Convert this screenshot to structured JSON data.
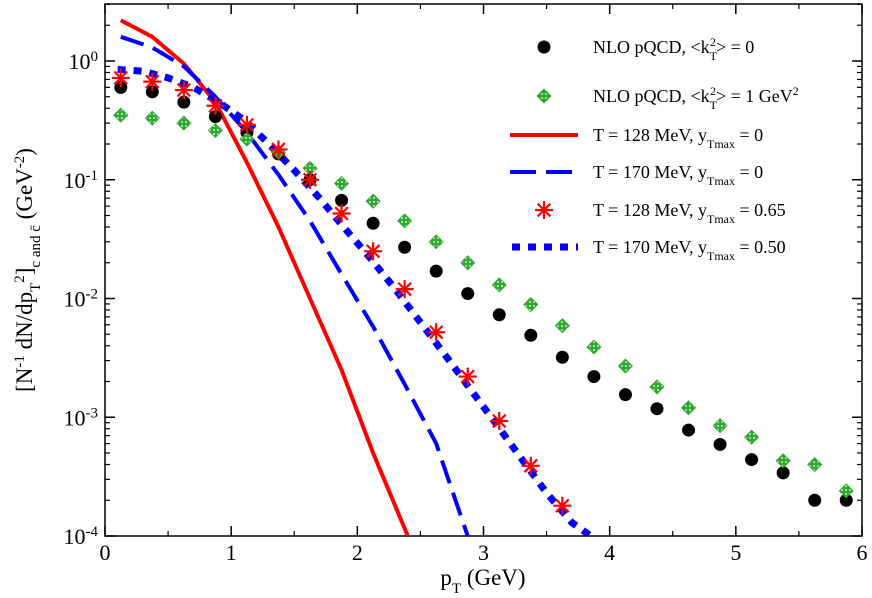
{
  "chart_data": {
    "type": "scatter",
    "title": "",
    "xlabel": "p_T (GeV)",
    "ylabel": "[N^-1 dN/dp_T^2]_c and c̄ (GeV^-2)",
    "xlim": [
      0,
      6
    ],
    "ylim": [
      0.0001,
      3.2
    ],
    "yscale": "log",
    "x_ticks": [
      "0",
      "1",
      "2",
      "3",
      "4",
      "5",
      "6"
    ],
    "y_ticks": [
      {
        "base": "10",
        "exp": "-4"
      },
      {
        "base": "10",
        "exp": "-3"
      },
      {
        "base": "10",
        "exp": "-2"
      },
      {
        "base": "10",
        "exp": "-1"
      },
      {
        "base": "10",
        "exp": "0"
      }
    ],
    "series": [
      {
        "name": "NLO pQCD, <k_T^2> = 0",
        "label_parts": [
          "NLO pQCD, <k",
          "T",
          "2",
          "> = 0"
        ],
        "style": "circle",
        "color": "#000000",
        "x": [
          0.125,
          0.375,
          0.625,
          0.875,
          1.125,
          1.375,
          1.625,
          1.875,
          2.125,
          2.375,
          2.625,
          2.875,
          3.125,
          3.375,
          3.625,
          3.875,
          4.125,
          4.375,
          4.625,
          4.875,
          5.125,
          5.375,
          5.625,
          5.875
        ],
        "y": [
          0.6,
          0.55,
          0.45,
          0.34,
          0.25,
          0.165,
          0.1,
          0.067,
          0.043,
          0.027,
          0.017,
          0.011,
          0.0073,
          0.0049,
          0.0032,
          0.0022,
          0.00155,
          0.00118,
          0.00078,
          0.00059,
          0.00044,
          0.00034,
          0.0002,
          0.0002
        ]
      },
      {
        "name": "NLO pQCD, <k_T^2> = 1 GeV^2",
        "label_parts": [
          "NLO pQCD, <k",
          "T",
          "2",
          "> = 1 GeV",
          "2"
        ],
        "style": "diamond",
        "color": "#2ea82e",
        "x": [
          0.125,
          0.375,
          0.625,
          0.875,
          1.125,
          1.375,
          1.625,
          1.875,
          2.125,
          2.375,
          2.625,
          2.875,
          3.125,
          3.375,
          3.625,
          3.875,
          4.125,
          4.375,
          4.625,
          4.875,
          5.125,
          5.375,
          5.625,
          5.875
        ],
        "y": [
          0.35,
          0.33,
          0.3,
          0.26,
          0.22,
          0.17,
          0.125,
          0.093,
          0.066,
          0.045,
          0.03,
          0.02,
          0.013,
          0.0089,
          0.0059,
          0.0039,
          0.0027,
          0.0018,
          0.0012,
          0.00085,
          0.00068,
          0.00043,
          0.0004,
          0.00024
        ]
      },
      {
        "name": "T = 128 MeV, y_Tmax = 0",
        "label_parts": [
          "T = 128 MeV, y",
          "Tmax",
          " = 0"
        ],
        "style": "solid",
        "color": "#ff0000",
        "x": [
          0.125,
          0.375,
          0.625,
          0.875,
          1.125,
          1.375,
          1.625,
          1.875,
          2.125,
          2.4
        ],
        "y": [
          2.2,
          1.6,
          0.95,
          0.45,
          0.14,
          0.04,
          0.01,
          0.0025,
          0.0005,
          0.0001
        ]
      },
      {
        "name": "T = 170 MeV, y_Tmax = 0",
        "label_parts": [
          "T = 170 MeV, y",
          "Tmax",
          " = 0"
        ],
        "style": "dashed",
        "color": "#0000ff",
        "x": [
          0.125,
          0.375,
          0.625,
          0.875,
          1.125,
          1.375,
          1.625,
          1.875,
          2.125,
          2.375,
          2.625,
          2.875
        ],
        "y": [
          1.6,
          1.3,
          0.9,
          0.5,
          0.25,
          0.11,
          0.045,
          0.016,
          0.0058,
          0.0019,
          0.0006,
          0.0001
        ]
      },
      {
        "name": "T = 128 MeV, y_Tmax = 0.65",
        "label_parts": [
          "T = 128 MeV, y",
          "Tmax",
          " = 0.65"
        ],
        "style": "asterisk",
        "color": "#ff0000",
        "x": [
          0.125,
          0.375,
          0.625,
          0.875,
          1.125,
          1.375,
          1.625,
          1.875,
          2.125,
          2.375,
          2.625,
          2.875,
          3.125,
          3.375,
          3.625
        ],
        "y": [
          0.72,
          0.67,
          0.57,
          0.42,
          0.29,
          0.18,
          0.1,
          0.052,
          0.025,
          0.012,
          0.0052,
          0.0022,
          0.00093,
          0.00039,
          0.00018
        ]
      },
      {
        "name": "T = 170 MeV, y_Tmax = 0.50",
        "label_parts": [
          "T = 170 MeV, y",
          "Tmax",
          " = 0.50"
        ],
        "style": "dotted",
        "color": "#0000ff",
        "x": [
          0.1,
          0.3,
          0.5,
          0.7,
          0.9,
          1.1,
          1.3,
          1.5,
          1.7,
          1.9,
          2.1,
          2.3,
          2.5,
          2.7,
          2.9,
          3.1,
          3.3,
          3.5,
          3.7,
          3.85
        ],
        "y": [
          0.85,
          0.82,
          0.72,
          0.6,
          0.45,
          0.32,
          0.2,
          0.12,
          0.07,
          0.039,
          0.022,
          0.012,
          0.0063,
          0.0033,
          0.0017,
          0.00088,
          0.00045,
          0.00023,
          0.00013,
          0.0001
        ]
      }
    ]
  }
}
